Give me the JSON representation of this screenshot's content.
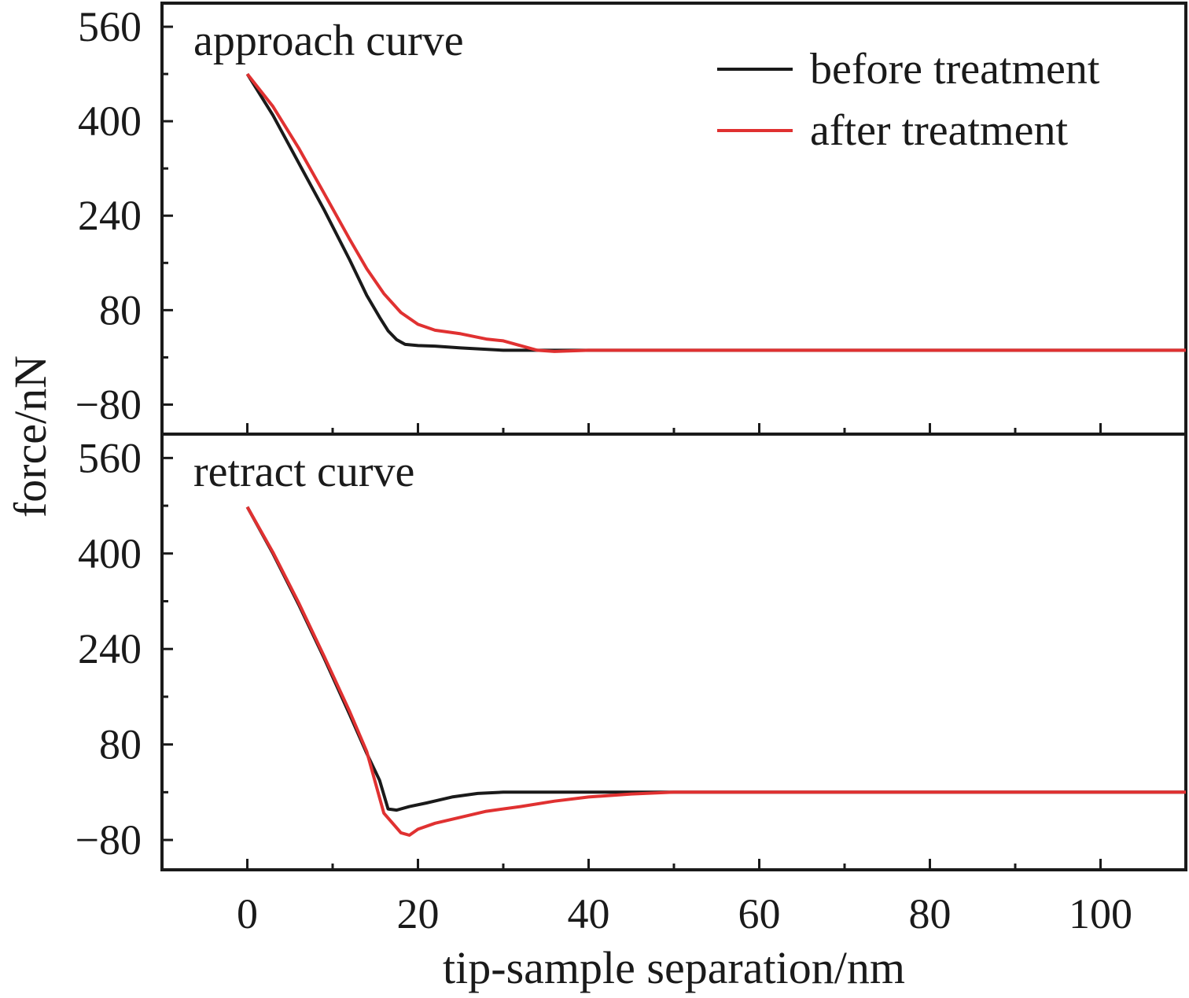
{
  "chart_data": {
    "type": "line",
    "xlabel": "tip-sample separation/nm",
    "ylabel": "force/nN",
    "xlim": [
      -10,
      110
    ],
    "xticks": [
      0,
      20,
      40,
      60,
      80,
      100
    ],
    "xtick_labels": [
      "0",
      "20",
      "40",
      "60",
      "80",
      "100"
    ],
    "legend": {
      "placement": "top-right",
      "entries": [
        {
          "name": "before treatment",
          "color": "#1a1a1a"
        },
        {
          "name": "after treatment",
          "color": "#e03131"
        }
      ]
    },
    "panels": [
      {
        "label": "approach curve",
        "ylim": [
          -130,
          600
        ],
        "yticks": [
          560,
          400,
          240,
          80,
          -80
        ],
        "ytick_labels": [
          "560",
          "400",
          "240",
          "80",
          "−80"
        ],
        "series": [
          {
            "name": "before treatment",
            "color": "#1a1a1a",
            "x": [
              0,
              3,
              6,
              9,
              12,
              14,
              15.5,
              16.5,
              17.5,
              18.5,
              20,
              22,
              25,
              30,
              35,
              40,
              50,
              60,
              70,
              80,
              90,
              100,
              110
            ],
            "y": [
              480,
              410,
              330,
              250,
              165,
              105,
              68,
              45,
              30,
              22,
              20,
              19,
              16,
              12,
              12,
              12,
              12,
              12,
              12,
              12,
              12,
              12,
              12
            ]
          },
          {
            "name": "after treatment",
            "color": "#e03131",
            "x": [
              0,
              3,
              6,
              9,
              12,
              14,
              16,
              18,
              20,
              22,
              25,
              28,
              30,
              32,
              34,
              36,
              40,
              50,
              60,
              70,
              80,
              90,
              100,
              110
            ],
            "y": [
              480,
              425,
              355,
              278,
              200,
              150,
              108,
              76,
              56,
              46,
              40,
              31,
              28,
              20,
              12,
              10,
              12,
              12,
              12,
              12,
              12,
              12,
              12,
              12
            ]
          }
        ]
      },
      {
        "label": "retract curve",
        "ylim": [
          -130,
          600
        ],
        "yticks": [
          560,
          400,
          240,
          80,
          -80
        ],
        "ytick_labels": [
          "560",
          "400",
          "240",
          "80",
          "−80"
        ],
        "series": [
          {
            "name": "before treatment",
            "color": "#1a1a1a",
            "x": [
              0,
              3,
              6,
              9,
              12,
              14,
              15.5,
              16.5,
              17.5,
              19,
              21,
              24,
              27,
              30,
              35,
              40,
              50,
              60,
              70,
              80,
              90,
              100,
              110
            ],
            "y": [
              478,
              400,
              315,
              225,
              130,
              65,
              20,
              -28,
              -30,
              -24,
              -18,
              -8,
              -2,
              0,
              0,
              0,
              0,
              0,
              0,
              0,
              0,
              0,
              0
            ]
          },
          {
            "name": "after treatment",
            "color": "#e03131",
            "x": [
              0,
              3,
              6,
              9,
              12,
              14,
              16,
              18,
              19,
              20,
              22,
              25,
              28,
              32,
              36,
              40,
              45,
              50,
              60,
              70,
              80,
              90,
              100,
              110
            ],
            "y": [
              478,
              402,
              318,
              228,
              135,
              68,
              -35,
              -68,
              -72,
              -62,
              -52,
              -42,
              -32,
              -24,
              -15,
              -8,
              -3,
              0,
              0,
              0,
              0,
              0,
              0,
              0
            ]
          }
        ]
      }
    ]
  }
}
